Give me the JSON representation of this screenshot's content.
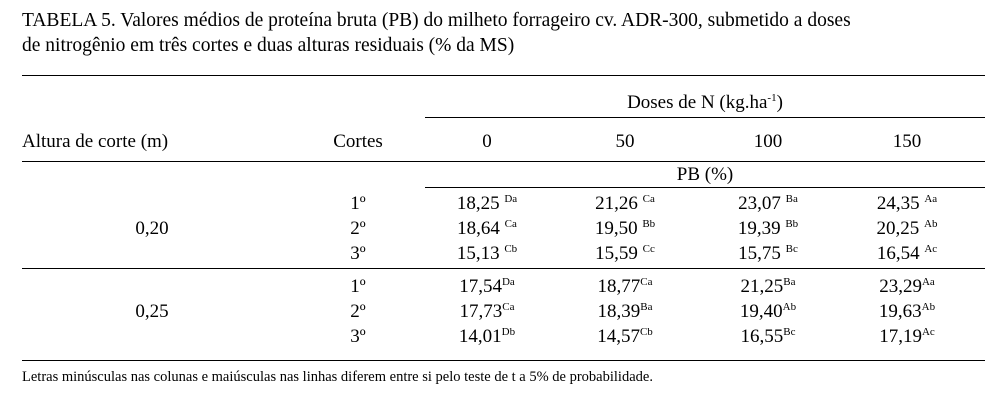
{
  "table": {
    "title": [
      "TABELA 5. Valores médios de proteína bruta (PB) do milheto forrageiro cv. ADR-300, submetido a doses",
      "de nitrogênio em três cortes e duas alturas residuais (% da MS)"
    ],
    "group_header": {
      "text": "Doses de N (kg.ha",
      "superscript": "-1",
      "close": ")"
    },
    "columns": [
      "Altura de corte (m)",
      "Cortes",
      "0",
      "50",
      "100",
      "150"
    ],
    "subheader": "PB (%)",
    "groups": [
      {
        "altura": "0,20",
        "rows": [
          {
            "corte": "1º",
            "cells": [
              {
                "value": "18,25",
                "letters": "Da"
              },
              {
                "value": "21,26",
                "letters": "Ca"
              },
              {
                "value": "23,07",
                "letters": "Ba"
              },
              {
                "value": "24,35",
                "letters": "Aa"
              }
            ]
          },
          {
            "corte": "2º",
            "cells": [
              {
                "value": "18,64",
                "letters": "Ca"
              },
              {
                "value": "19,50",
                "letters": "Bb"
              },
              {
                "value": "19,39",
                "letters": "Bb"
              },
              {
                "value": "20,25",
                "letters": "Ab"
              }
            ]
          },
          {
            "corte": "3º",
            "cells": [
              {
                "value": "15,13",
                "letters": "Cb"
              },
              {
                "value": "15,59",
                "letters": "Cc"
              },
              {
                "value": "15,75",
                "letters": "Bc"
              },
              {
                "value": "16,54",
                "letters": "Ac"
              }
            ]
          }
        ]
      },
      {
        "altura": "0,25",
        "rows": [
          {
            "corte": "1º",
            "cells": [
              {
                "value": "17,54",
                "letters": "Da"
              },
              {
                "value": "18,77",
                "letters": "Ca"
              },
              {
                "value": "21,25",
                "letters": "Ba"
              },
              {
                "value": "23,29",
                "letters": "Aa"
              }
            ]
          },
          {
            "corte": "2º",
            "cells": [
              {
                "value": "17,73",
                "letters": "Ca"
              },
              {
                "value": "18,39",
                "letters": "Ba"
              },
              {
                "value": "19,40",
                "letters": "Ab"
              },
              {
                "value": "19,63",
                "letters": "Ab"
              }
            ]
          },
          {
            "corte": "3º",
            "cells": [
              {
                "value": "14,01",
                "letters": "Db"
              },
              {
                "value": "14,57",
                "letters": "Cb"
              },
              {
                "value": "16,55",
                "letters": "Bc"
              },
              {
                "value": "17,19",
                "letters": "Ac"
              }
            ]
          }
        ]
      }
    ],
    "footnote": "Letras minúsculas nas colunas e maiúsculas nas linhas diferem entre si pelo teste de t a 5% de probabilidade."
  }
}
